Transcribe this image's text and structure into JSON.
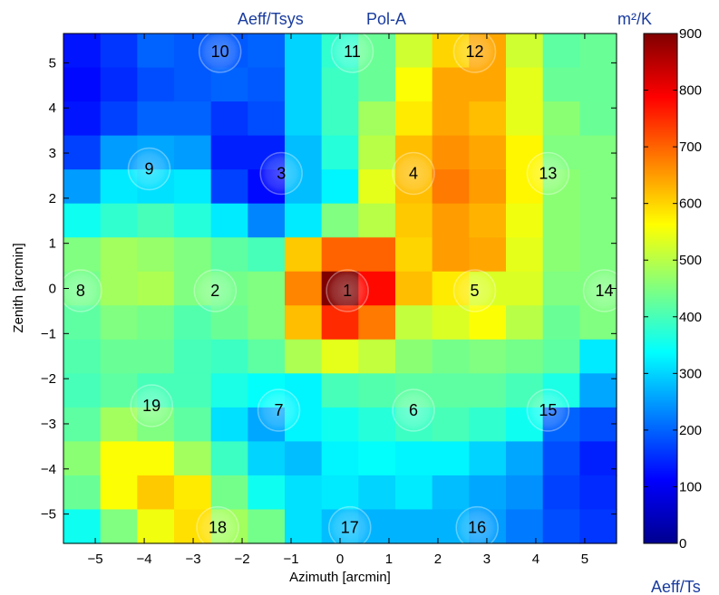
{
  "chart_data": {
    "type": "heatmap",
    "title_left": "Aeff/Tsys",
    "title_right": "Pol-A",
    "colorbar_unit": "m²/K",
    "xlabel": "Azimuth [arcmin]",
    "ylabel": "Zenith [arcmin]",
    "xlim": [
      -5.65,
      5.65
    ],
    "ylim": [
      -5.65,
      5.65
    ],
    "x_ticks": [
      "−5",
      "−4",
      "−3",
      "−2",
      "−1",
      "0",
      "1",
      "2",
      "3",
      "4",
      "5"
    ],
    "y_ticks": [
      "5",
      "4",
      "3",
      "2",
      "1",
      "0",
      "−1",
      "−2",
      "−3",
      "−4",
      "−5"
    ],
    "colorbar_ticks": [
      "900",
      "800",
      "700",
      "600",
      "500",
      "400",
      "300",
      "200",
      "100",
      "0"
    ],
    "clim": [
      0,
      900
    ],
    "colormap": "jet",
    "grid_cols": 15,
    "grid_rows": 15,
    "values": [
      [
        130,
        160,
        200,
        190,
        190,
        200,
        300,
        380,
        430,
        520,
        600,
        640,
        520,
        420,
        430
      ],
      [
        120,
        150,
        180,
        190,
        200,
        190,
        300,
        390,
        430,
        560,
        640,
        640,
        540,
        430,
        430
      ],
      [
        130,
        170,
        200,
        200,
        160,
        180,
        300,
        390,
        480,
        580,
        640,
        620,
        540,
        460,
        430
      ],
      [
        170,
        250,
        260,
        250,
        140,
        140,
        280,
        370,
        500,
        620,
        660,
        640,
        570,
        450,
        450
      ],
      [
        250,
        320,
        310,
        320,
        170,
        120,
        280,
        330,
        540,
        620,
        680,
        650,
        570,
        460,
        450
      ],
      [
        350,
        380,
        400,
        370,
        320,
        230,
        320,
        450,
        500,
        610,
        650,
        630,
        550,
        460,
        450
      ],
      [
        450,
        480,
        470,
        450,
        420,
        400,
        610,
        700,
        700,
        600,
        650,
        640,
        540,
        460,
        450
      ],
      [
        440,
        480,
        490,
        450,
        440,
        450,
        670,
        900,
        780,
        620,
        580,
        530,
        530,
        450,
        450
      ],
      [
        420,
        450,
        440,
        410,
        430,
        450,
        620,
        750,
        680,
        510,
        530,
        560,
        500,
        430,
        450
      ],
      [
        410,
        430,
        430,
        400,
        390,
        420,
        490,
        540,
        510,
        460,
        440,
        450,
        440,
        420,
        320
      ],
      [
        400,
        420,
        400,
        400,
        360,
        340,
        330,
        400,
        410,
        420,
        420,
        420,
        400,
        360,
        260
      ],
      [
        420,
        480,
        450,
        420,
        310,
        260,
        330,
        350,
        370,
        390,
        400,
        380,
        350,
        200,
        180
      ],
      [
        460,
        560,
        560,
        480,
        390,
        300,
        280,
        330,
        340,
        330,
        330,
        300,
        260,
        180,
        140
      ],
      [
        430,
        560,
        610,
        580,
        440,
        350,
        310,
        320,
        300,
        320,
        280,
        260,
        240,
        170,
        150
      ],
      [
        350,
        450,
        550,
        590,
        480,
        440,
        310,
        280,
        270,
        270,
        270,
        250,
        220,
        180,
        160
      ]
    ],
    "beam_labels": [
      {
        "label": "10",
        "az": -2.45,
        "ze": 5.25
      },
      {
        "label": "11",
        "az": 0.25,
        "ze": 5.25
      },
      {
        "label": "12",
        "az": 2.75,
        "ze": 5.25
      },
      {
        "label": "9",
        "az": -3.9,
        "ze": 2.65
      },
      {
        "label": "3",
        "az": -1.2,
        "ze": 2.55
      },
      {
        "label": "4",
        "az": 1.5,
        "ze": 2.55
      },
      {
        "label": "13",
        "az": 4.25,
        "ze": 2.55
      },
      {
        "label": "8",
        "az": -5.3,
        "ze": -0.05
      },
      {
        "label": "2",
        "az": -2.55,
        "ze": -0.05
      },
      {
        "label": "1",
        "az": 0.15,
        "ze": -0.05
      },
      {
        "label": "5",
        "az": 2.75,
        "ze": -0.05
      },
      {
        "label": "14",
        "az": 5.4,
        "ze": -0.05
      },
      {
        "label": "19",
        "az": -3.85,
        "ze": -2.6
      },
      {
        "label": "7",
        "az": -1.25,
        "ze": -2.7
      },
      {
        "label": "6",
        "az": 1.5,
        "ze": -2.7
      },
      {
        "label": "15",
        "az": 4.25,
        "ze": -2.7
      },
      {
        "label": "18",
        "az": -2.5,
        "ze": -5.3
      },
      {
        "label": "17",
        "az": 0.2,
        "ze": -5.3
      },
      {
        "label": "16",
        "az": 2.8,
        "ze": -5.3
      }
    ],
    "footer_text": "Aeff/Ts"
  }
}
